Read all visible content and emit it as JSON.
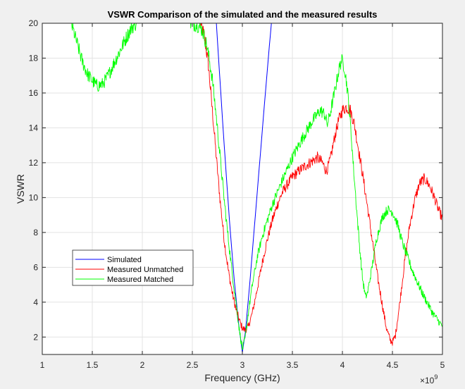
{
  "chart_data": {
    "type": "line",
    "title": "VSWR Comparison of the simulated and the measured results",
    "xlabel": "Frequency (GHz)",
    "ylabel": "VSWR",
    "x_multiplier": "×10",
    "x_multiplier_exp": "9",
    "xlim": [
      1,
      5
    ],
    "ylim": [
      1,
      20
    ],
    "xticks": [
      1,
      1.5,
      2,
      2.5,
      3,
      3.5,
      4,
      4.5,
      5
    ],
    "xtick_labels": [
      "1",
      "1.5",
      "2",
      "2.5",
      "3",
      "3.5",
      "4",
      "4.5",
      "5"
    ],
    "yticks": [
      2,
      4,
      6,
      8,
      10,
      12,
      14,
      16,
      18,
      20
    ],
    "ytick_labels": [
      "2",
      "4",
      "6",
      "8",
      "10",
      "12",
      "14",
      "16",
      "18",
      "20"
    ],
    "grid": true,
    "legend_position": "lower-left",
    "series": [
      {
        "name": "Simulated",
        "color": "#0000ff",
        "points": [
          [
            2.74,
            20
          ],
          [
            2.76,
            18.2
          ],
          [
            2.8,
            14.6
          ],
          [
            2.84,
            11.2
          ],
          [
            2.88,
            8.0
          ],
          [
            2.92,
            5.2
          ],
          [
            2.96,
            2.9
          ],
          [
            3.0,
            1.1
          ],
          [
            3.03,
            2.3
          ],
          [
            3.07,
            4.8
          ],
          [
            3.11,
            7.6
          ],
          [
            3.15,
            10.4
          ],
          [
            3.19,
            13.2
          ],
          [
            3.23,
            16.0
          ],
          [
            3.27,
            18.7
          ],
          [
            3.29,
            20
          ]
        ]
      },
      {
        "name": "Measured Unmatched",
        "color": "#ff0000",
        "points": [
          [
            2.58,
            20
          ],
          [
            2.62,
            19.3
          ],
          [
            2.66,
            17.6
          ],
          [
            2.7,
            15.0
          ],
          [
            2.74,
            12.3
          ],
          [
            2.78,
            9.7
          ],
          [
            2.82,
            7.5
          ],
          [
            2.86,
            5.8
          ],
          [
            2.9,
            4.5
          ],
          [
            2.94,
            3.5
          ],
          [
            2.98,
            2.8
          ],
          [
            3.0,
            2.5
          ],
          [
            3.03,
            2.4
          ],
          [
            3.06,
            2.6
          ],
          [
            3.1,
            3.4
          ],
          [
            3.15,
            4.8
          ],
          [
            3.2,
            6.3
          ],
          [
            3.25,
            7.6
          ],
          [
            3.3,
            8.7
          ],
          [
            3.35,
            9.6
          ],
          [
            3.4,
            10.3
          ],
          [
            3.5,
            11.2
          ],
          [
            3.6,
            11.7
          ],
          [
            3.7,
            12.1
          ],
          [
            3.75,
            12.3
          ],
          [
            3.8,
            12.0
          ],
          [
            3.84,
            11.5
          ],
          [
            3.88,
            12.2
          ],
          [
            3.92,
            13.4
          ],
          [
            3.96,
            14.4
          ],
          [
            4.0,
            15.0
          ],
          [
            4.04,
            15.2
          ],
          [
            4.08,
            15.0
          ],
          [
            4.12,
            14.2
          ],
          [
            4.16,
            12.8
          ],
          [
            4.2,
            11.4
          ],
          [
            4.25,
            9.5
          ],
          [
            4.3,
            7.5
          ],
          [
            4.35,
            5.5
          ],
          [
            4.4,
            3.8
          ],
          [
            4.44,
            2.5
          ],
          [
            4.48,
            1.8
          ],
          [
            4.5,
            1.7
          ],
          [
            4.53,
            2.1
          ],
          [
            4.57,
            3.8
          ],
          [
            4.62,
            6.2
          ],
          [
            4.67,
            8.3
          ],
          [
            4.72,
            9.8
          ],
          [
            4.77,
            10.8
          ],
          [
            4.82,
            11.1
          ],
          [
            4.87,
            10.7
          ],
          [
            4.92,
            10.0
          ],
          [
            4.96,
            9.3
          ],
          [
            5.0,
            8.8
          ]
        ]
      },
      {
        "name": "Measured Matched",
        "color": "#00ff00",
        "points": [
          [
            1.29,
            20
          ],
          [
            1.32,
            19.4
          ],
          [
            1.36,
            18.6
          ],
          [
            1.4,
            17.8
          ],
          [
            1.45,
            17.1
          ],
          [
            1.5,
            16.7
          ],
          [
            1.55,
            16.4
          ],
          [
            1.6,
            16.5
          ],
          [
            1.65,
            16.9
          ],
          [
            1.7,
            17.5
          ],
          [
            1.75,
            18.1
          ],
          [
            1.8,
            18.7
          ],
          [
            1.85,
            19.3
          ],
          [
            1.9,
            19.8
          ],
          [
            1.94,
            20
          ]
        ],
        "points2": [
          [
            2.48,
            20
          ],
          [
            2.55,
            19.9
          ],
          [
            2.6,
            19.6
          ],
          [
            2.65,
            18.6
          ],
          [
            2.7,
            16.8
          ],
          [
            2.74,
            14.6
          ],
          [
            2.78,
            12.2
          ],
          [
            2.82,
            9.8
          ],
          [
            2.86,
            7.6
          ],
          [
            2.9,
            5.6
          ],
          [
            2.94,
            3.8
          ],
          [
            2.97,
            2.4
          ],
          [
            3.0,
            1.3
          ],
          [
            3.03,
            2.0
          ],
          [
            3.06,
            3.4
          ],
          [
            3.1,
            5.0
          ],
          [
            3.15,
            6.6
          ],
          [
            3.2,
            7.8
          ],
          [
            3.3,
            9.6
          ],
          [
            3.4,
            11.0
          ],
          [
            3.5,
            12.3
          ],
          [
            3.6,
            13.4
          ],
          [
            3.7,
            14.4
          ],
          [
            3.78,
            15.0
          ],
          [
            3.82,
            14.8
          ],
          [
            3.85,
            14.2
          ],
          [
            3.88,
            14.9
          ],
          [
            3.92,
            16.0
          ],
          [
            3.96,
            17.2
          ],
          [
            3.99,
            17.9
          ],
          [
            4.02,
            17.5
          ],
          [
            4.05,
            16.2
          ],
          [
            4.08,
            14.2
          ],
          [
            4.11,
            11.8
          ],
          [
            4.14,
            9.5
          ],
          [
            4.17,
            7.3
          ],
          [
            4.2,
            5.4
          ],
          [
            4.23,
            4.3
          ],
          [
            4.25,
            4.5
          ],
          [
            4.29,
            5.8
          ],
          [
            4.34,
            7.6
          ],
          [
            4.4,
            8.9
          ],
          [
            4.45,
            9.3
          ],
          [
            4.5,
            9.2
          ],
          [
            4.55,
            8.5
          ],
          [
            4.6,
            7.4
          ],
          [
            4.7,
            5.8
          ],
          [
            4.8,
            4.5
          ],
          [
            4.9,
            3.4
          ],
          [
            5.0,
            2.6
          ]
        ]
      }
    ]
  }
}
